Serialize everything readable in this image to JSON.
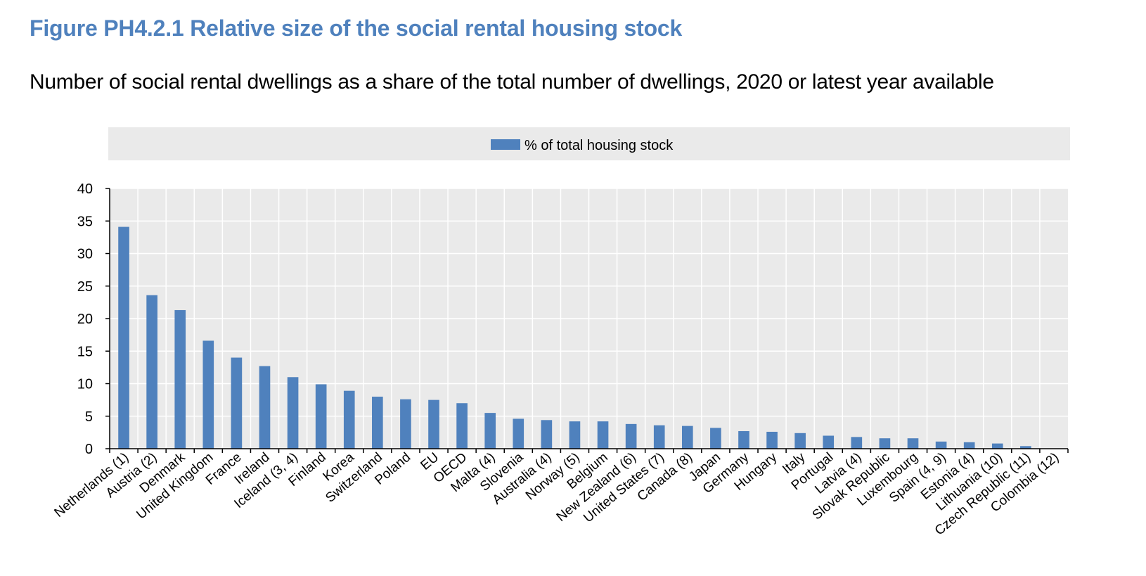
{
  "title": "Figure PH4.2.1 Relative size of the social rental housing stock",
  "subtitle": "Number of social rental dwellings as a share of the total number of dwellings, 2020 or latest year available",
  "colors": {
    "bar": "#4F81BD",
    "title": "#4F81BD",
    "legend_bg": "#EAEAEA",
    "plot_bg": "#EAEAEA",
    "grid": "#FFFFFF"
  },
  "chart_data": {
    "type": "bar",
    "categories": [
      "Netherlands (1)",
      "Austria (2)",
      "Denmark",
      "United Kingdom",
      "France",
      "Ireland",
      "Iceland (3, 4)",
      "Finland",
      "Korea",
      "Switzerland",
      "Poland",
      "EU",
      "OECD",
      "Malta (4)",
      "Slovenia",
      "Australia (4)",
      "Norway (5)",
      "Belgium",
      "New Zealand (6)",
      "United States (7)",
      "Canada (8)",
      "Japan",
      "Germany",
      "Hungary",
      "Italy",
      "Portugal",
      "Latvia (4)",
      "Slovak Republic",
      "Luxembourg",
      "Spain (4, 9)",
      "Estonia (4)",
      "Lithuania (10)",
      "Czech Republic (11)",
      "Colombia (12)"
    ],
    "series": [
      {
        "name": "% of total housing stock",
        "values": [
          34.1,
          23.6,
          21.3,
          16.6,
          14.0,
          12.7,
          11.0,
          9.9,
          8.9,
          8.0,
          7.6,
          7.5,
          7.0,
          5.5,
          4.6,
          4.4,
          4.2,
          4.2,
          3.8,
          3.6,
          3.5,
          3.2,
          2.7,
          2.6,
          2.4,
          2.0,
          1.8,
          1.6,
          1.6,
          1.1,
          1.0,
          0.8,
          0.4,
          0.0
        ]
      }
    ],
    "yticks": [
      0,
      5,
      10,
      15,
      20,
      25,
      30,
      35,
      40
    ],
    "ylim": [
      0,
      40
    ],
    "grid": true,
    "legend_position": "top-center"
  }
}
